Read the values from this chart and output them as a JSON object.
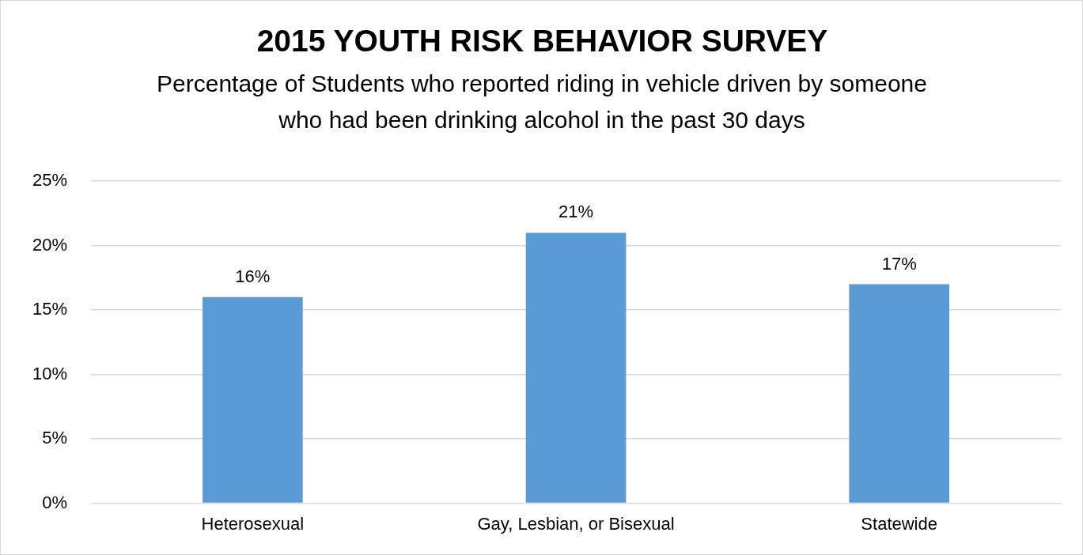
{
  "chart_data": {
    "type": "bar",
    "title": "2015 YOUTH RISK BEHAVIOR SURVEY",
    "subtitle": "Percentage of Students who reported riding in vehicle driven by someone who had been drinking alcohol in the past 30 days",
    "categories": [
      "Heterosexual",
      "Gay, Lesbian, or Bisexual",
      "Statewide"
    ],
    "values": [
      16,
      21,
      17
    ],
    "color": "#5b9bd5",
    "value_labels": [
      "16%",
      "21%",
      "17%"
    ],
    "ylim": [
      0,
      25
    ],
    "yticks": [
      {
        "value": 0,
        "label": "0%"
      },
      {
        "value": 5,
        "label": "5%"
      },
      {
        "value": 10,
        "label": "10%"
      },
      {
        "value": 15,
        "label": "15%"
      },
      {
        "value": 20,
        "label": "20%"
      },
      {
        "value": 25,
        "label": "25%"
      }
    ],
    "grid": "y",
    "legend": false
  }
}
